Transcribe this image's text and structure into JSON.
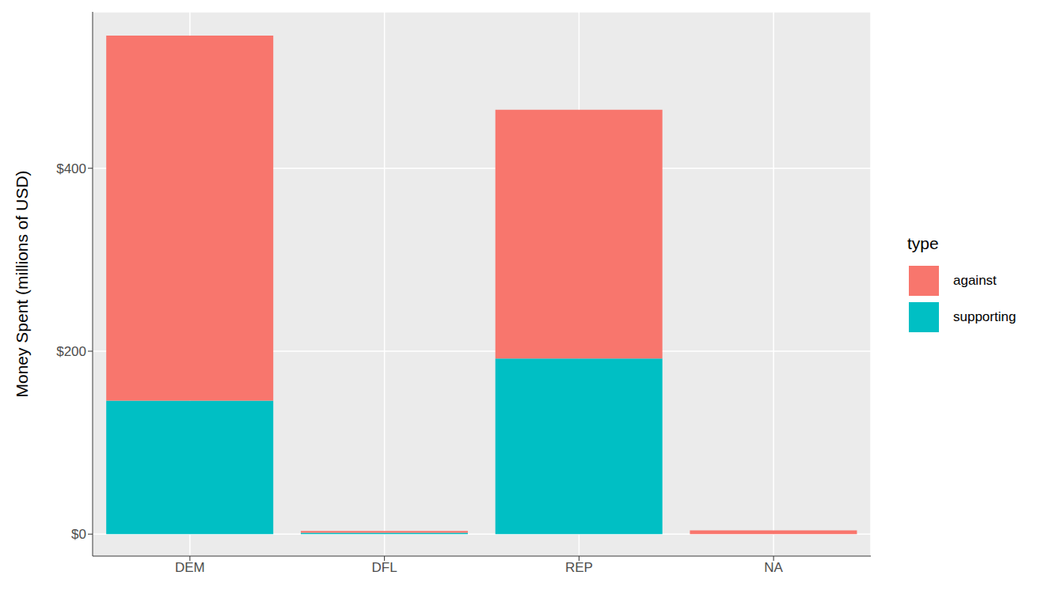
{
  "chart_data": {
    "type": "bar",
    "stacked": true,
    "categories": [
      "DEM",
      "DFL",
      "REP",
      "NA"
    ],
    "series": [
      {
        "name": "against",
        "color": "#F8766D",
        "values": [
          399,
          2,
          272,
          4
        ]
      },
      {
        "name": "supporting",
        "color": "#00BFC4",
        "values": [
          146,
          1.5,
          192,
          0
        ]
      }
    ],
    "y_label": "Money Spent (millions of USD)",
    "ylim": [
      -24,
      571
    ],
    "yticks": [
      {
        "value": 0,
        "label": "$0"
      },
      {
        "value": 200,
        "label": "$200"
      },
      {
        "value": 400,
        "label": "$400"
      }
    ],
    "grid": true,
    "legend": "right",
    "legend_title": "type"
  }
}
